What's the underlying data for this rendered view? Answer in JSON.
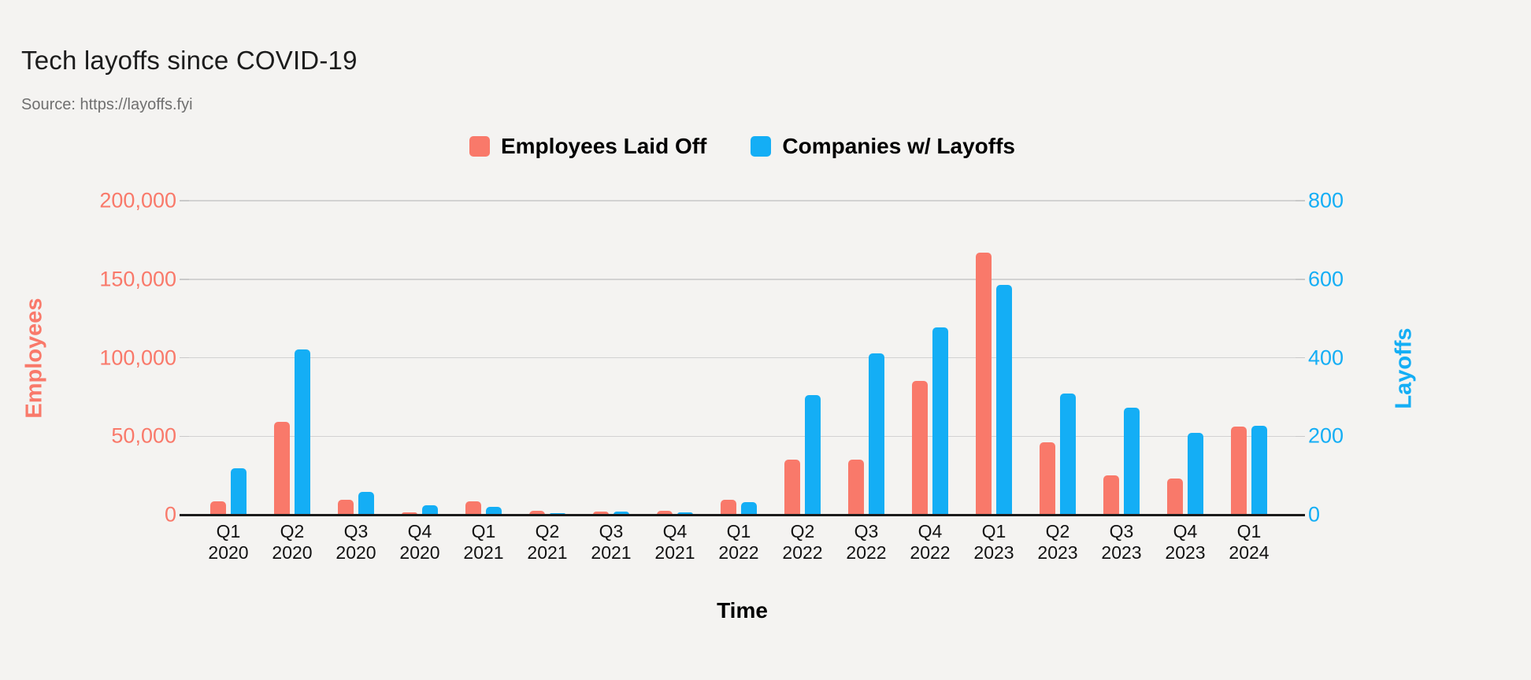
{
  "header": {
    "title": "Tech layoffs since COVID-19",
    "source": "Source: https://layoffs.fyi"
  },
  "legend": {
    "items": [
      {
        "label": "Employees Laid Off",
        "color": "#F9796A"
      },
      {
        "label": "Companies w/ Layoffs",
        "color": "#14AEF5"
      }
    ]
  },
  "chart_data": {
    "type": "bar",
    "title": "Tech layoffs since COVID-19",
    "source": "Source: https://layoffs.fyi",
    "xlabel": "Time",
    "grid": true,
    "legend_position": "top",
    "categories": [
      "Q1 2020",
      "Q2 2020",
      "Q3 2020",
      "Q4 2020",
      "Q1 2021",
      "Q2 2021",
      "Q3 2021",
      "Q4 2021",
      "Q1 2022",
      "Q2 2022",
      "Q3 2022",
      "Q4 2022",
      "Q1 2023",
      "Q2 2023",
      "Q3 2023",
      "Q4 2023",
      "Q1 2024"
    ],
    "series": [
      {
        "name": "Employees Laid Off",
        "axis": "left",
        "color": "#F9796A",
        "values": [
          8500,
          59000,
          9700,
          1300,
          8300,
          2500,
          2000,
          2500,
          9400,
          35000,
          35000,
          85000,
          167000,
          46000,
          25000,
          23000,
          56000
        ]
      },
      {
        "name": "Companies w/ Layoffs",
        "axis": "right",
        "color": "#14AEF5",
        "values": [
          118,
          422,
          59,
          24,
          20,
          4,
          8,
          7,
          33,
          304,
          412,
          477,
          585,
          309,
          272,
          209,
          227
        ]
      }
    ],
    "left_axis": {
      "title": "Employees",
      "color": "#F9796A",
      "min": 0,
      "max": 200000,
      "ticks": [
        {
          "v": 0,
          "label": "0"
        },
        {
          "v": 50000,
          "label": "50,000"
        },
        {
          "v": 100000,
          "label": "100,000"
        },
        {
          "v": 150000,
          "label": "150,000"
        },
        {
          "v": 200000,
          "label": "200,000"
        }
      ]
    },
    "right_axis": {
      "title": "Layoffs",
      "color": "#14AEF5",
      "min": 0,
      "max": 800,
      "ticks": [
        {
          "v": 0,
          "label": "0"
        },
        {
          "v": 200,
          "label": "200"
        },
        {
          "v": 400,
          "label": "400"
        },
        {
          "v": 600,
          "label": "600"
        },
        {
          "v": 800,
          "label": "800"
        }
      ]
    }
  },
  "colors": {
    "background": "#F4F3F1",
    "grid": "#D2D2D2",
    "tick_mark": "#C9C9C9",
    "axis_line": "#1B1B1B",
    "text": "#000000",
    "muted": "#6F6F6F"
  }
}
